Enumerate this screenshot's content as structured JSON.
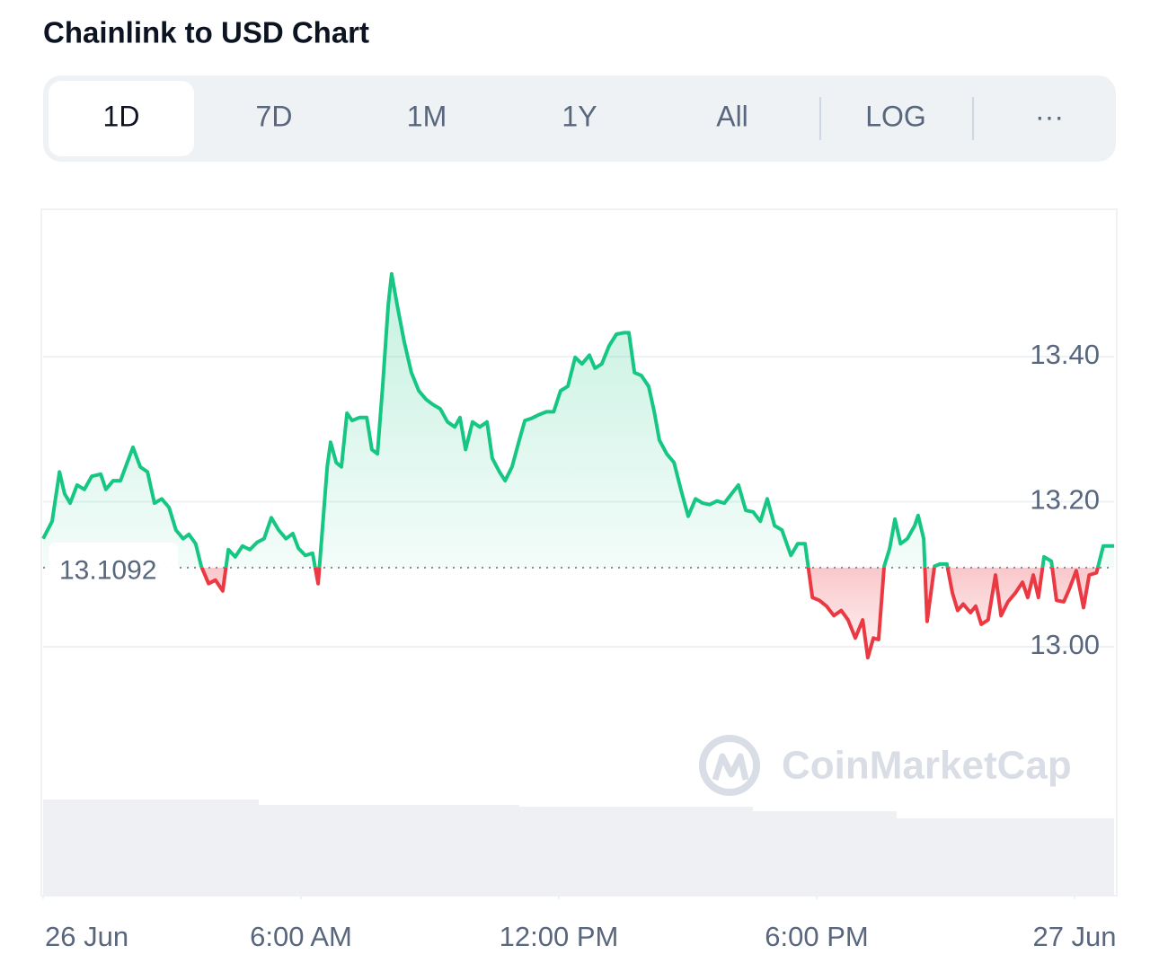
{
  "header": {
    "title": "Chainlink to USD Chart",
    "tabs": [
      "1D",
      "7D",
      "1M",
      "1Y",
      "All",
      "LOG",
      "···"
    ],
    "selected_tab": 0
  },
  "watermark": "CoinMarketCap",
  "chart_data": {
    "type": "line",
    "x": [
      0.0,
      0.21,
      0.38,
      0.5,
      0.63,
      0.79,
      0.96,
      1.13,
      1.34,
      1.46,
      1.63,
      1.8,
      1.92,
      2.09,
      2.26,
      2.43,
      2.59,
      2.76,
      2.93,
      3.09,
      3.26,
      3.39,
      3.55,
      3.68,
      3.85,
      4.01,
      4.18,
      4.31,
      4.47,
      4.64,
      4.81,
      4.98,
      5.14,
      5.31,
      5.48,
      5.65,
      5.81,
      5.94,
      6.1,
      6.27,
      6.4,
      6.48,
      6.61,
      6.69,
      6.82,
      6.94,
      7.07,
      7.19,
      7.36,
      7.53,
      7.65,
      7.78,
      7.9,
      8.03,
      8.11,
      8.24,
      8.4,
      8.57,
      8.74,
      8.91,
      9.07,
      9.24,
      9.41,
      9.58,
      9.7,
      9.83,
      9.99,
      10.16,
      10.33,
      10.45,
      10.62,
      10.75,
      10.91,
      11.08,
      11.21,
      11.37,
      11.54,
      11.71,
      11.88,
      12.04,
      12.21,
      12.38,
      12.54,
      12.71,
      12.84,
      13.0,
      13.17,
      13.34,
      13.51,
      13.63,
      13.76,
      13.92,
      14.09,
      14.22,
      14.34,
      14.51,
      14.68,
      14.84,
      15.01,
      15.18,
      15.35,
      15.51,
      15.68,
      15.85,
      16.02,
      16.18,
      16.35,
      16.52,
      16.69,
      16.85,
      17.02,
      17.19,
      17.4,
      17.56,
      17.73,
      17.9,
      18.06,
      18.23,
      18.4,
      18.57,
      18.73,
      18.9,
      19.07,
      19.19,
      19.32,
      19.44,
      19.57,
      19.7,
      19.82,
      19.95,
      20.11,
      20.28,
      20.36,
      20.49,
      20.57,
      20.74,
      20.87,
      21.03,
      21.16,
      21.28,
      21.41,
      21.58,
      21.7,
      21.83,
      21.99,
      22.16,
      22.29,
      22.45,
      22.62,
      22.79,
      22.91,
      23.04,
      23.16,
      23.29,
      23.46,
      23.58,
      23.75,
      23.88,
      24.04,
      24.21,
      24.34,
      24.51,
      24.67,
      24.92
    ],
    "values": [
      13.149,
      13.173,
      13.241,
      13.211,
      13.198,
      13.223,
      13.217,
      13.235,
      13.238,
      13.217,
      13.229,
      13.229,
      13.248,
      13.275,
      13.248,
      13.241,
      13.198,
      13.204,
      13.192,
      13.161,
      13.149,
      13.155,
      13.142,
      13.111,
      13.087,
      13.092,
      13.077,
      13.134,
      13.124,
      13.139,
      13.134,
      13.144,
      13.149,
      13.178,
      13.161,
      13.149,
      13.156,
      13.136,
      13.126,
      13.129,
      13.087,
      13.149,
      13.248,
      13.282,
      13.254,
      13.248,
      13.322,
      13.312,
      13.316,
      13.316,
      13.272,
      13.266,
      13.359,
      13.471,
      13.514,
      13.471,
      13.421,
      13.378,
      13.353,
      13.341,
      13.334,
      13.328,
      13.31,
      13.303,
      13.316,
      13.272,
      13.31,
      13.303,
      13.31,
      13.26,
      13.241,
      13.229,
      13.248,
      13.285,
      13.312,
      13.315,
      13.32,
      13.324,
      13.324,
      13.353,
      13.359,
      13.399,
      13.39,
      13.402,
      13.384,
      13.39,
      13.415,
      13.431,
      13.433,
      13.433,
      13.378,
      13.374,
      13.359,
      13.324,
      13.285,
      13.266,
      13.254,
      13.217,
      13.18,
      13.204,
      13.198,
      13.196,
      13.201,
      13.198,
      13.211,
      13.223,
      13.188,
      13.186,
      13.173,
      13.204,
      13.167,
      13.161,
      13.126,
      13.142,
      13.142,
      13.068,
      13.064,
      13.056,
      13.043,
      13.05,
      13.037,
      13.012,
      13.037,
      12.985,
      13.012,
      13.01,
      13.111,
      13.136,
      13.176,
      13.142,
      13.149,
      13.167,
      13.181,
      13.149,
      13.035,
      13.111,
      13.114,
      13.114,
      13.074,
      13.05,
      13.059,
      13.047,
      13.056,
      13.031,
      13.037,
      13.099,
      13.043,
      13.062,
      13.074,
      13.089,
      13.068,
      13.099,
      13.068,
      13.124,
      13.118,
      13.064,
      13.062,
      13.08,
      13.105,
      13.054,
      13.099,
      13.102,
      13.139,
      13.139
    ],
    "baseline": 13.1092,
    "up_color": "#16c784",
    "down_color": "#ea3943",
    "xlim": [
      0,
      24.92
    ],
    "xticks": [
      {
        "value": 0,
        "label": "26 Jun"
      },
      {
        "value": 6,
        "label": "6:00 AM"
      },
      {
        "value": 12,
        "label": "12:00 PM"
      },
      {
        "value": 18,
        "label": "6:00 PM"
      },
      {
        "value": 24,
        "label": "27 Jun"
      }
    ],
    "ylim": [
      12.8,
      13.6
    ],
    "yticks": [
      {
        "value": 13.0,
        "label": "13.00"
      },
      {
        "value": 13.2,
        "label": "13.20"
      },
      {
        "value": 13.4,
        "label": "13.40"
      }
    ],
    "grid": true
  }
}
